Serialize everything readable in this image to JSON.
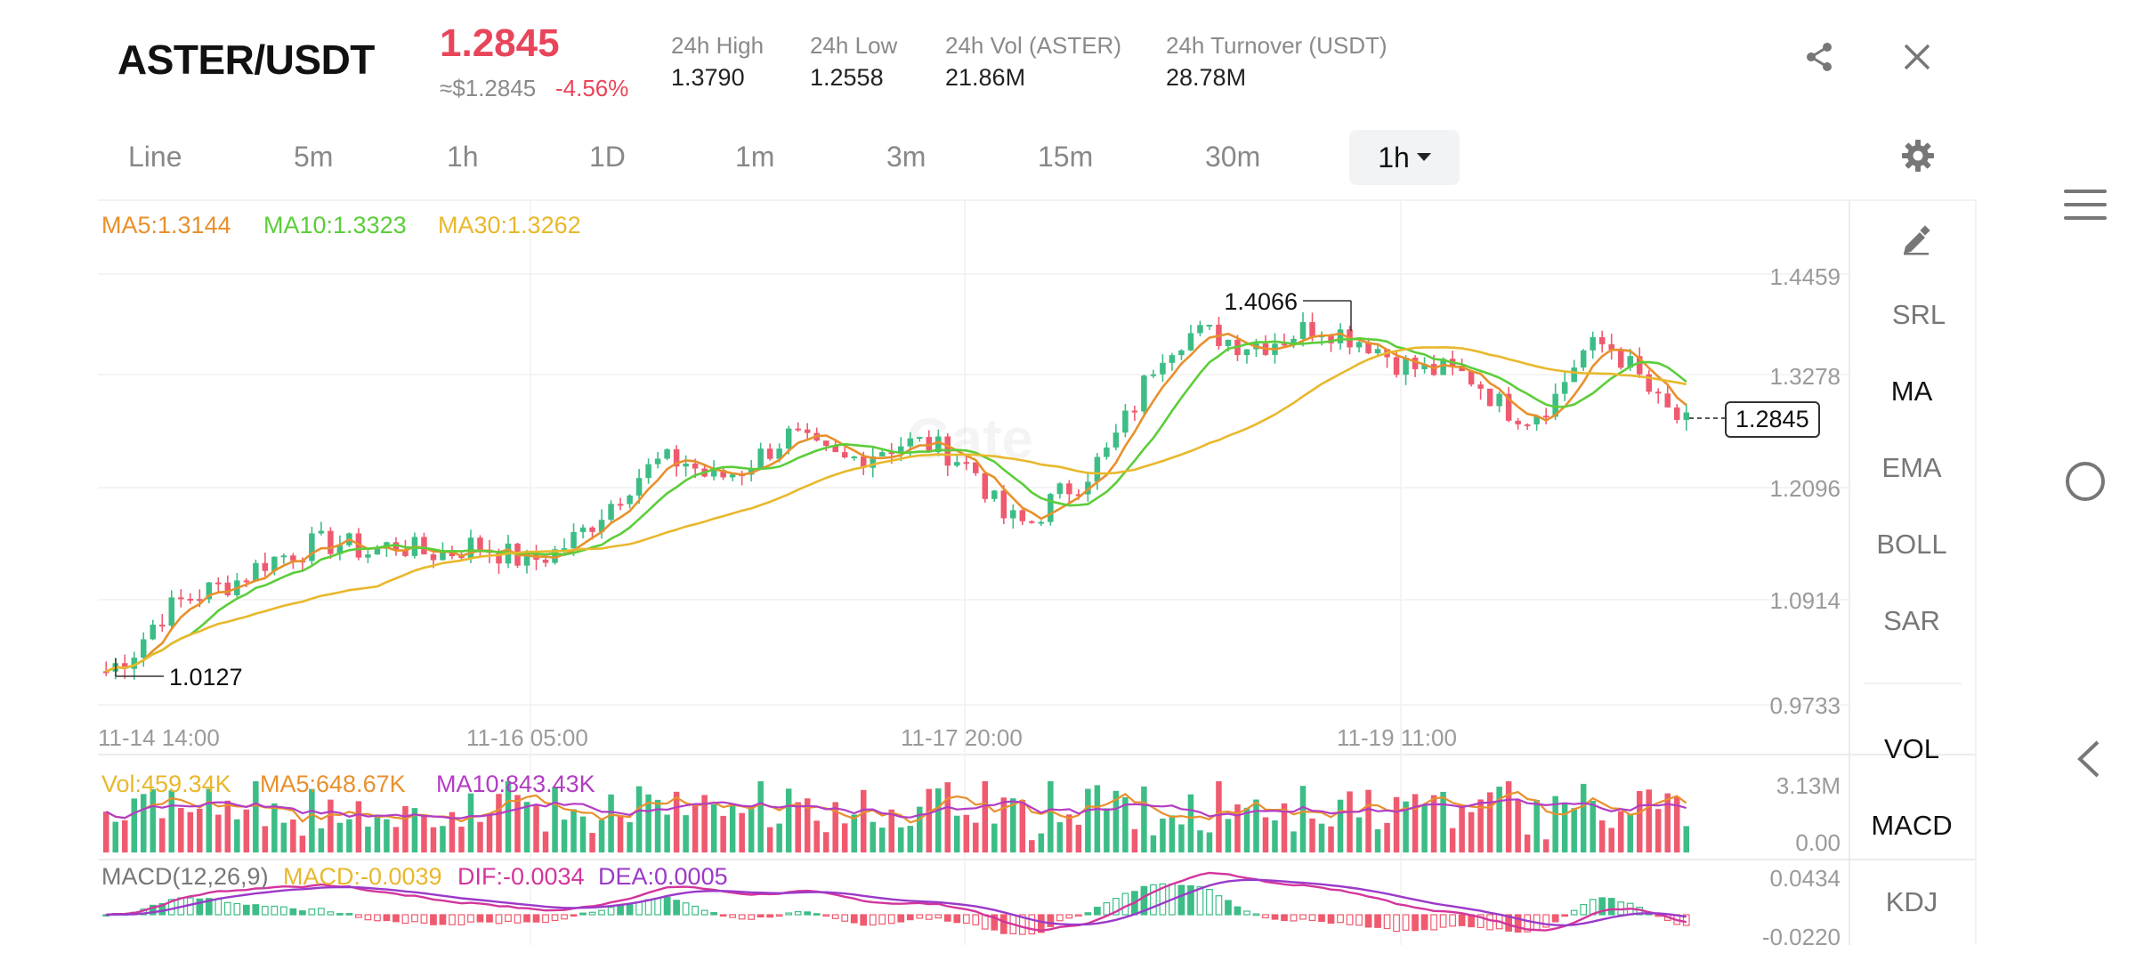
{
  "header": {
    "pair": "ASTER/USDT",
    "price": "1.2845",
    "approx": "≈$1.2845",
    "change": "-4.56%",
    "stats": [
      {
        "label": "24h High",
        "value": "1.3790"
      },
      {
        "label": "24h Low",
        "value": "1.2558"
      },
      {
        "label": "24h Vol (ASTER)",
        "value": "21.86M"
      },
      {
        "label": "24h Turnover (USDT)",
        "value": "28.78M"
      }
    ]
  },
  "tabs": [
    "Line",
    "5m",
    "1h",
    "1D",
    "1m",
    "3m",
    "15m",
    "30m"
  ],
  "active_interval": "1h",
  "ma_legend": {
    "ma5": "MA5:1.3144",
    "ma10": "MA10:1.3323",
    "ma30": "MA30:1.3262"
  },
  "price_axis": [
    "1.4459",
    "1.3278",
    "1.2096",
    "1.0914",
    "0.9733"
  ],
  "time_axis": [
    "11-14 14:00",
    "11-16 05:00",
    "11-17 20:00",
    "11-19 11:00"
  ],
  "high_marker": "1.4066",
  "low_marker": "1.0127",
  "current_price": "1.2845",
  "volume_legend": {
    "vol": "Vol:459.34K",
    "ma5": "MA5:648.67K",
    "ma10": "MA10:843.43K"
  },
  "volume_axis": [
    "3.13M",
    "0.00"
  ],
  "macd_legend": {
    "title": "MACD(12,26,9)",
    "macd": "MACD:-0.0039",
    "dif": "DIF:-0.0034",
    "dea": "DEA:0.0005"
  },
  "macd_axis": [
    "0.0434",
    "-0.0220"
  ],
  "indicators_main": [
    "SRL",
    "MA",
    "EMA",
    "BOLL",
    "SAR"
  ],
  "indicators_main_active": "MA",
  "indicators_sub": [
    "VOL",
    "MACD",
    "KDJ"
  ],
  "indicators_sub_active": [
    "VOL",
    "MACD"
  ],
  "watermark": "Gate",
  "colors": {
    "up": "#3dbd86",
    "down": "#ef5a6f",
    "ma5": "#e8902c",
    "ma10": "#5ccd3a",
    "ma30": "#e8b82c",
    "macd_dif": "#d3359c",
    "macd_dea": "#9b39c9",
    "price_red": "#e8455a"
  },
  "icons": {
    "share": "share-icon",
    "close": "close-icon",
    "settings": "gear-icon",
    "draw": "pencil-icon",
    "menu": "menu-icon",
    "home": "circle-icon",
    "back": "back-icon"
  },
  "chart_data": {
    "type": "candlestick",
    "interval": "1h",
    "ylim": [
      0.9733,
      1.4459
    ],
    "price_trend": [
      1.01,
      1.03,
      1.07,
      1.09,
      1.1,
      1.11,
      1.13,
      1.14,
      1.15,
      1.15,
      1.14,
      1.15,
      1.14,
      1.14,
      1.15,
      1.14,
      1.13,
      1.14,
      1.16,
      1.19,
      1.22,
      1.24,
      1.24,
      1.22,
      1.23,
      1.25,
      1.27,
      1.25,
      1.24,
      1.25,
      1.26,
      1.26,
      1.25,
      1.23,
      1.18,
      1.17,
      1.2,
      1.22,
      1.25,
      1.3,
      1.36,
      1.38,
      1.38,
      1.37,
      1.37,
      1.38,
      1.39,
      1.38,
      1.37,
      1.35,
      1.34,
      1.34,
      1.33,
      1.3,
      1.29,
      1.31,
      1.36,
      1.37,
      1.34,
      1.3,
      1.28
    ]
  }
}
